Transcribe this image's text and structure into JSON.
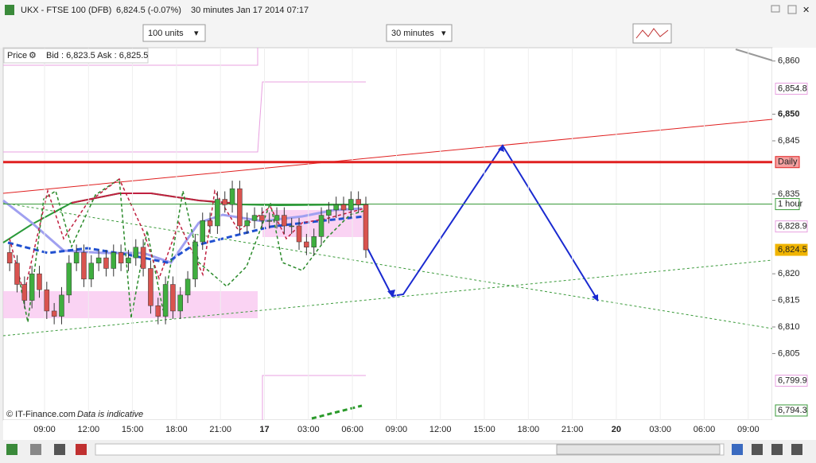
{
  "window": {
    "title": "UKX - FTSE 100 (DFB)",
    "quote": "6,824.5 (-0.07%)",
    "interval": "30 minutes",
    "timestamp": "Jan 17 2014 07:17"
  },
  "toolbar": {
    "size": "100 units",
    "period": "30 minutes"
  },
  "info": {
    "price": "Price",
    "bidask": "Bid : 6,823.5 Ask : 6,825.5"
  },
  "footer": {
    "copyright": "© IT-Finance.com",
    "note": "Data is indicative"
  },
  "chart_data": {
    "type": "candlestick",
    "categories": [
      "09:00",
      "12:00",
      "15:00",
      "18:00",
      "21:00",
      "17",
      "03:00",
      "06:00",
      "09:00",
      "12:00",
      "15:00",
      "18:00",
      "21:00",
      "20",
      "03:00",
      "06:00",
      "09:00"
    ],
    "open": [
      6824,
      6822,
      6818,
      6815,
      6820,
      6817,
      6813,
      6812,
      6816,
      6822,
      6824,
      6819,
      6822,
      6823,
      6821,
      6824,
      6822,
      6823,
      6825,
      6821,
      6814,
      6812,
      6818,
      6813,
      6816,
      6819,
      6826,
      6830,
      6829,
      6834,
      6833,
      6836,
      6829,
      6830,
      6831,
      6830,
      6830,
      6831,
      6829,
      6829,
      6826,
      6825,
      6827,
      6831,
      6832,
      6833,
      6832,
      6834,
      6833
    ],
    "high": [
      6825.5,
      6823.5,
      6819.5,
      6821.5,
      6821.5,
      6818.5,
      6814.5,
      6817.5,
      6823.5,
      6825.5,
      6825.5,
      6823.5,
      6824.5,
      6824.5,
      6825.5,
      6825.5,
      6824.5,
      6826.5,
      6826.5,
      6822.5,
      6815.5,
      6819.5,
      6819.5,
      6817.5,
      6820.5,
      6827.5,
      6831.5,
      6831.5,
      6835.5,
      6835.5,
      6837.5,
      6837.5,
      6831.5,
      6832.5,
      6832.5,
      6831.5,
      6832.5,
      6832.5,
      6830.5,
      6830.5,
      6827.5,
      6828.5,
      6832.5,
      6833.5,
      6834.5,
      6834.5,
      6835.5,
      6835.5,
      6834.5
    ],
    "low": [
      6820.5,
      6816.5,
      6813.5,
      6813.5,
      6815.5,
      6811.5,
      6810.5,
      6810.5,
      6814.5,
      6820.5,
      6817.5,
      6817.5,
      6820.5,
      6819.5,
      6819.5,
      6820.5,
      6820.5,
      6821.5,
      6819.5,
      6812.5,
      6810.5,
      6810.5,
      6811.5,
      6811.5,
      6814.5,
      6817.5,
      6824.5,
      6827.5,
      6827.5,
      6831.5,
      6831.5,
      6827.5,
      6827.5,
      6828.5,
      6828.5,
      6828.5,
      6828.5,
      6827.5,
      6827.5,
      6824.5,
      6823.5,
      6823.5,
      6825.5,
      6829.5,
      6830.5,
      6830.5,
      6830.5,
      6831.5,
      6823
    ],
    "close": [
      6822,
      6818,
      6815,
      6820,
      6817,
      6813,
      6812,
      6816,
      6822,
      6824,
      6819,
      6822,
      6823,
      6821,
      6824,
      6822,
      6823,
      6825,
      6821,
      6814,
      6812,
      6818,
      6813,
      6816,
      6819,
      6826,
      6830,
      6829,
      6834,
      6833,
      6836,
      6829,
      6830,
      6831,
      6830,
      6830,
      6831,
      6829,
      6829,
      6826,
      6825,
      6827,
      6831,
      6832,
      6833,
      6832,
      6834,
      6833,
      6824.5
    ],
    "up_color": "#3fae3f",
    "down_color": "#d9534f",
    "ylim": [
      6792.5,
      6862.5
    ],
    "yticks": [
      {
        "value": 6860,
        "label": "6,860"
      },
      {
        "value": 6850,
        "label": "6,850"
      },
      {
        "value": 6845,
        "label": "6,845"
      },
      {
        "value": 6835,
        "label": "6,835"
      },
      {
        "value": 6820,
        "label": "6,820"
      },
      {
        "value": 6815,
        "label": "6,815"
      },
      {
        "value": 6810,
        "label": "6,810"
      },
      {
        "value": 6805,
        "label": "6,805"
      }
    ],
    "levels": [
      {
        "name": "Daily",
        "value": 6841,
        "color": "#e02020"
      },
      {
        "name": "1 hour",
        "value": 6833.1,
        "color": "#3a9a3a"
      }
    ],
    "price_labels": [
      {
        "value": 6854.8,
        "label": "6,854.8",
        "color": "#e8a0e0"
      },
      {
        "value": 6828.9,
        "label": "6,828.9",
        "color": "#e8a0e0"
      },
      {
        "value": 6824.5,
        "label": "6,824.5",
        "color": "#f0b400"
      },
      {
        "value": 6799.9,
        "label": "6,799.9",
        "color": "#e8a0e0"
      },
      {
        "value": 6794.3,
        "label": "6,794.3",
        "color": "#3a9a3a"
      }
    ]
  }
}
